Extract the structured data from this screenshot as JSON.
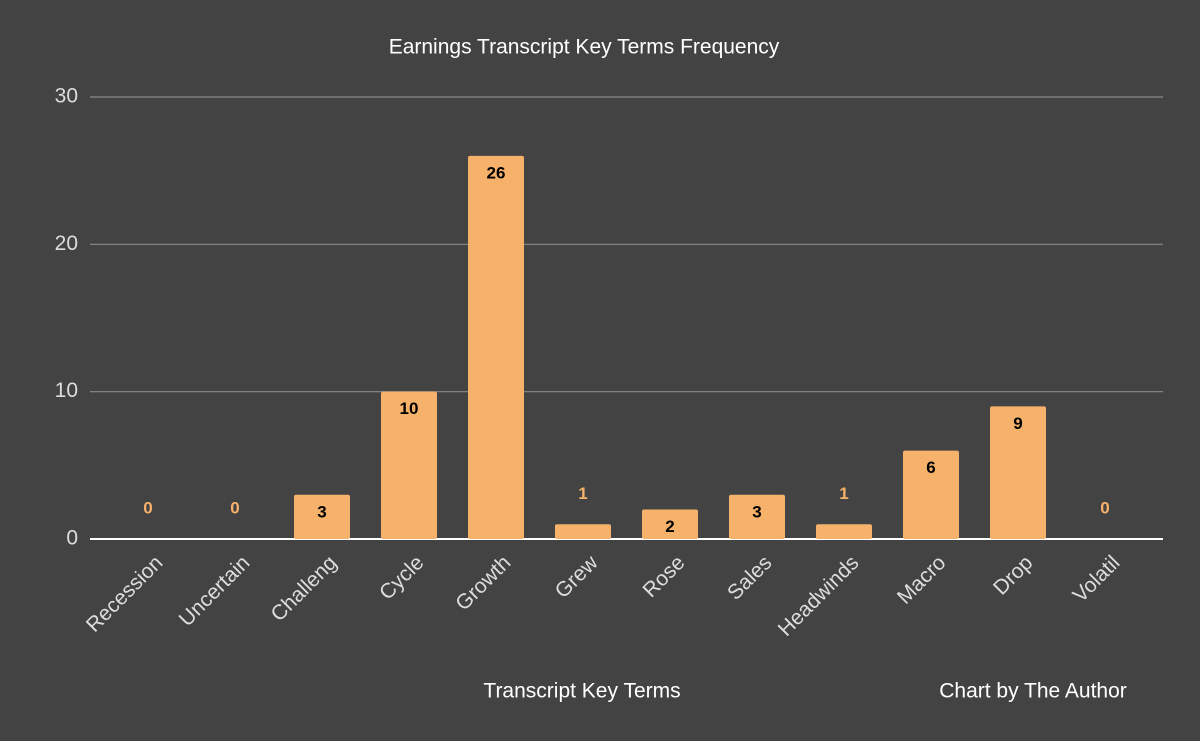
{
  "chart_data": {
    "type": "bar",
    "title": "Earnings Transcript Key Terms Frequency",
    "x_label": "Transcript Key Terms",
    "annotation": "Chart by The Author",
    "categories": [
      "Recession",
      "Uncertain",
      "Challeng",
      "Cycle",
      "Growth",
      "Grew",
      "Rose",
      "Sales",
      "Headwinds",
      "Macro",
      "Drop",
      "Volatil"
    ],
    "values": [
      0,
      0,
      3,
      10,
      26,
      1,
      2,
      3,
      1,
      6,
      9,
      0
    ],
    "color": "#f6b26b",
    "ylim": [
      0,
      30
    ],
    "yticks": [
      0,
      10,
      20,
      30
    ],
    "grid": true
  }
}
